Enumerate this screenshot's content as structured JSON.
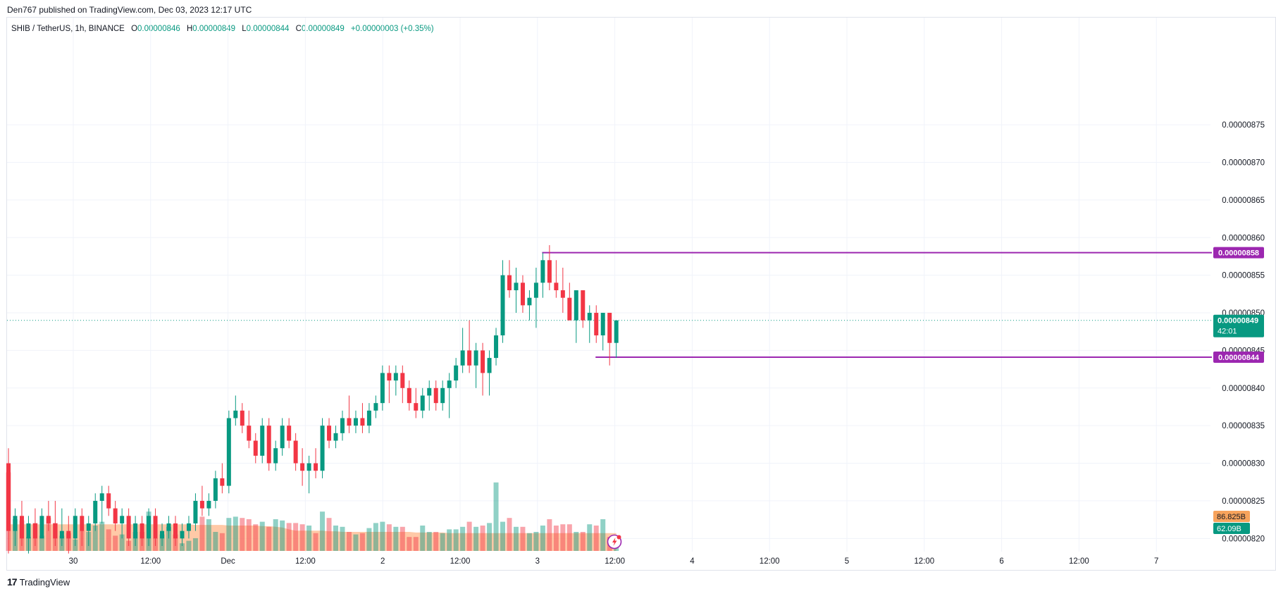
{
  "header": {
    "published": "Den767 published on TradingView.com, Dec 03, 2023 12:17 UTC",
    "symbol": "SHIB / TetherUS, 1h, BINANCE",
    "o_label": "O",
    "o_value": "0.00000846",
    "h_label": "H",
    "h_value": "0.00000849",
    "l_label": "L",
    "l_value": "0.00000844",
    "c_label": "C",
    "c_value": "0.00000849",
    "change": "+0.00000003 (+0.35%)"
  },
  "branding": {
    "logo": "17",
    "name": "TradingView"
  },
  "colors": {
    "up": "#089981",
    "down": "#f23645",
    "level": "#9c27b0",
    "ma": "#ffb78a"
  },
  "chart_data": {
    "type": "candlestick",
    "title": "SHIB / TetherUS, 1h, BINANCE",
    "y_range": [
      8.1825e-06,
      8.8925e-06
    ],
    "y_ticks": [
      "0.00000875",
      "0.00000870",
      "0.00000865",
      "0.00000860",
      "0.00000855",
      "0.00000850",
      "0.00000845",
      "0.00000840",
      "0.00000835",
      "0.00000830",
      "0.00000825",
      "0.00000820"
    ],
    "x_ticks": [
      "30",
      "12:00",
      "Dec",
      "12:00",
      "2",
      "12:00",
      "3",
      "12:00",
      "4",
      "12:00",
      "5",
      "12:00",
      "6",
      "12:00",
      "7"
    ],
    "candles": [
      [
        8.3e-06,
        8.32e-06,
        8.18e-06,
        8.21e-06
      ],
      [
        8.21e-06,
        8.24e-06,
        8.19e-06,
        8.23e-06
      ],
      [
        8.23e-06,
        8.25e-06,
        8.19e-06,
        8.2e-06
      ],
      [
        8.2e-06,
        8.23e-06,
        8.18e-06,
        8.22e-06
      ],
      [
        8.22e-06,
        8.24e-06,
        8.19e-06,
        8.2e-06
      ],
      [
        8.2e-06,
        8.24e-06,
        8.2e-06,
        8.23e-06
      ],
      [
        8.23e-06,
        8.25e-06,
        8.21e-06,
        8.22e-06
      ],
      [
        8.22e-06,
        8.25e-06,
        8.19e-06,
        8.2e-06
      ],
      [
        8.2e-06,
        8.24e-06,
        8.19e-06,
        8.21e-06
      ],
      [
        8.21e-06,
        8.23e-06,
        8.18e-06,
        8.2e-06
      ],
      [
        8.2e-06,
        8.24e-06,
        8.19e-06,
        8.23e-06
      ],
      [
        8.23e-06,
        8.24e-06,
        8.19e-06,
        8.21e-06
      ],
      [
        8.21e-06,
        8.23e-06,
        8.19e-06,
        8.22e-06
      ],
      [
        8.22e-06,
        8.26e-06,
        8.21e-06,
        8.25e-06
      ],
      [
        8.25e-06,
        8.27e-06,
        8.22e-06,
        8.26e-06
      ],
      [
        8.26e-06,
        8.27e-06,
        8.23e-06,
        8.24e-06
      ],
      [
        8.24e-06,
        8.25e-06,
        8.21e-06,
        8.22e-06
      ],
      [
        8.22e-06,
        8.24e-06,
        8.2e-06,
        8.23e-06
      ],
      [
        8.23e-06,
        8.24e-06,
        8.19e-06,
        8.2e-06
      ],
      [
        8.2e-06,
        8.23e-06,
        8.19e-06,
        8.22e-06
      ],
      [
        8.22e-06,
        8.23e-06,
        8.19e-06,
        8.2e-06
      ],
      [
        8.2e-06,
        8.24e-06,
        8.19e-06,
        8.23e-06
      ],
      [
        8.23e-06,
        8.24e-06,
        8.19e-06,
        8.2e-06
      ],
      [
        8.2e-06,
        8.22e-06,
        8.19e-06,
        8.21e-06
      ],
      [
        8.21e-06,
        8.23e-06,
        8.2e-06,
        8.22e-06
      ],
      [
        8.22e-06,
        8.23e-06,
        8.19e-06,
        8.2e-06
      ],
      [
        8.2e-06,
        8.22e-06,
        8.19e-06,
        8.21e-06
      ],
      [
        8.21e-06,
        8.23e-06,
        8.2e-06,
        8.22e-06
      ],
      [
        8.22e-06,
        8.26e-06,
        8.21e-06,
        8.25e-06
      ],
      [
        8.25e-06,
        8.27e-06,
        8.23e-06,
        8.24e-06
      ],
      [
        8.24e-06,
        8.26e-06,
        8.23e-06,
        8.25e-06
      ],
      [
        8.25e-06,
        8.29e-06,
        8.24e-06,
        8.28e-06
      ],
      [
        8.28e-06,
        8.3e-06,
        8.26e-06,
        8.27e-06
      ],
      [
        8.27e-06,
        8.37e-06,
        8.26e-06,
        8.36e-06
      ],
      [
        8.36e-06,
        8.39e-06,
        8.35e-06,
        8.37e-06
      ],
      [
        8.37e-06,
        8.38e-06,
        8.34e-06,
        8.35e-06
      ],
      [
        8.35e-06,
        8.37e-06,
        8.32e-06,
        8.33e-06
      ],
      [
        8.33e-06,
        8.34e-06,
        8.3e-06,
        8.31e-06
      ],
      [
        8.31e-06,
        8.36e-06,
        8.3e-06,
        8.35e-06
      ],
      [
        8.35e-06,
        8.36e-06,
        8.29e-06,
        8.3e-06
      ],
      [
        8.3e-06,
        8.33e-06,
        8.29e-06,
        8.32e-06
      ],
      [
        8.32e-06,
        8.36e-06,
        8.31e-06,
        8.35e-06
      ],
      [
        8.35e-06,
        8.36e-06,
        8.32e-06,
        8.33e-06
      ],
      [
        8.33e-06,
        8.34e-06,
        8.29e-06,
        8.3e-06
      ],
      [
        8.3e-06,
        8.32e-06,
        8.27e-06,
        8.29e-06
      ],
      [
        8.29e-06,
        8.31e-06,
        8.26e-06,
        8.3e-06
      ],
      [
        8.3e-06,
        8.32e-06,
        8.28e-06,
        8.29e-06
      ],
      [
        8.29e-06,
        8.36e-06,
        8.28e-06,
        8.35e-06
      ],
      [
        8.35e-06,
        8.36e-06,
        8.32e-06,
        8.33e-06
      ],
      [
        8.33e-06,
        8.35e-06,
        8.32e-06,
        8.34e-06
      ],
      [
        8.34e-06,
        8.37e-06,
        8.33e-06,
        8.36e-06
      ],
      [
        8.36e-06,
        8.39e-06,
        8.34e-06,
        8.35e-06
      ],
      [
        8.35e-06,
        8.37e-06,
        8.34e-06,
        8.36e-06
      ],
      [
        8.36e-06,
        8.38e-06,
        8.34e-06,
        8.35e-06
      ],
      [
        8.35e-06,
        8.38e-06,
        8.34e-06,
        8.37e-06
      ],
      [
        8.37e-06,
        8.39e-06,
        8.36e-06,
        8.38e-06
      ],
      [
        8.38e-06,
        8.43e-06,
        8.37e-06,
        8.42e-06
      ],
      [
        8.42e-06,
        8.43e-06,
        8.38e-06,
        8.41e-06
      ],
      [
        8.41e-06,
        8.43e-06,
        8.39e-06,
        8.42e-06
      ],
      [
        8.42e-06,
        8.43e-06,
        8.38e-06,
        8.4e-06
      ],
      [
        8.4e-06,
        8.41e-06,
        8.37e-06,
        8.38e-06
      ],
      [
        8.38e-06,
        8.4e-06,
        8.36e-06,
        8.37e-06
      ],
      [
        8.37e-06,
        8.4e-06,
        8.36e-06,
        8.39e-06
      ],
      [
        8.39e-06,
        8.41e-06,
        8.37e-06,
        8.4e-06
      ],
      [
        8.4e-06,
        8.41e-06,
        8.37e-06,
        8.38e-06
      ],
      [
        8.38e-06,
        8.41e-06,
        8.37e-06,
        8.4e-06
      ],
      [
        8.4e-06,
        8.42e-06,
        8.36e-06,
        8.41e-06
      ],
      [
        8.41e-06,
        8.44e-06,
        8.4e-06,
        8.43e-06
      ],
      [
        8.43e-06,
        8.48e-06,
        8.42e-06,
        8.45e-06
      ],
      [
        8.45e-06,
        8.49e-06,
        8.42e-06,
        8.43e-06
      ],
      [
        8.43e-06,
        8.46e-06,
        8.4e-06,
        8.45e-06
      ],
      [
        8.45e-06,
        8.46e-06,
        8.39e-06,
        8.42e-06
      ],
      [
        8.42e-06,
        8.45e-06,
        8.39e-06,
        8.44e-06
      ],
      [
        8.44e-06,
        8.48e-06,
        8.43e-06,
        8.47e-06
      ],
      [
        8.47e-06,
        8.57e-06,
        8.46e-06,
        8.55e-06
      ],
      [
        8.55e-06,
        8.57e-06,
        8.52e-06,
        8.53e-06
      ],
      [
        8.53e-06,
        8.56e-06,
        8.5e-06,
        8.54e-06
      ],
      [
        8.54e-06,
        8.55e-06,
        8.5e-06,
        8.51e-06
      ],
      [
        8.51e-06,
        8.53e-06,
        8.49e-06,
        8.52e-06
      ],
      [
        8.52e-06,
        8.56e-06,
        8.48e-06,
        8.54e-06
      ],
      [
        8.54e-06,
        8.58e-06,
        8.52e-06,
        8.57e-06
      ],
      [
        8.57e-06,
        8.59e-06,
        8.53e-06,
        8.54e-06
      ],
      [
        8.54e-06,
        8.57e-06,
        8.52e-06,
        8.53e-06
      ],
      [
        8.53e-06,
        8.56e-06,
        8.5e-06,
        8.52e-06
      ],
      [
        8.52e-06,
        8.54e-06,
        8.49e-06,
        8.49e-06
      ],
      [
        8.49e-06,
        8.53e-06,
        8.46e-06,
        8.53e-06
      ],
      [
        8.53e-06,
        8.53e-06,
        8.48e-06,
        8.49e-06
      ],
      [
        8.49e-06,
        8.51e-06,
        8.46e-06,
        8.5e-06
      ],
      [
        8.5e-06,
        8.51e-06,
        8.46e-06,
        8.47e-06
      ],
      [
        8.47e-06,
        8.5e-06,
        8.45e-06,
        8.5e-06
      ],
      [
        8.5e-06,
        8.5e-06,
        8.43e-06,
        8.46e-06
      ],
      [
        8.46e-06,
        8.49e-06,
        8.44e-06,
        8.49e-06
      ]
    ],
    "volume": [
      62,
      25,
      24,
      11,
      22,
      12,
      26,
      22,
      12,
      14,
      9,
      16,
      15,
      20,
      23,
      17,
      12,
      13,
      8,
      15,
      15,
      31,
      10,
      13,
      19,
      13,
      6,
      8,
      10,
      27,
      25,
      15,
      14,
      26,
      27,
      26,
      25,
      21,
      23,
      19,
      25,
      24,
      22,
      22,
      21,
      20,
      14,
      31,
      26,
      20,
      19,
      15,
      13,
      14,
      18,
      22,
      23,
      21,
      19,
      19,
      11,
      11,
      20,
      15,
      15,
      14,
      17,
      17,
      19,
      23,
      19,
      20,
      22,
      54,
      23,
      26,
      19,
      19,
      14,
      15,
      20,
      25,
      20,
      21,
      21,
      15,
      15,
      21,
      20,
      25,
      11,
      5
    ],
    "volume_ma": [
      21,
      21,
      21,
      21,
      21,
      21,
      21,
      21,
      21,
      21,
      21,
      21,
      21,
      21,
      21,
      21,
      21,
      21,
      21,
      21,
      21,
      21,
      21,
      21,
      21,
      21,
      21,
      21,
      20.5,
      20.5,
      20.5,
      20.5,
      20.5,
      20,
      20,
      20,
      20,
      20,
      19.5,
      19.5,
      19,
      18.5,
      17,
      16,
      16,
      16,
      16,
      16,
      15.5,
      15.5,
      15,
      15,
      15,
      15,
      15,
      15,
      15,
      15,
      15,
      15,
      15,
      14.5,
      14.5,
      14.5,
      14.5,
      14.5,
      14,
      14,
      14,
      14,
      14,
      14,
      14,
      14,
      14,
      14,
      14,
      14,
      14,
      14,
      14,
      14,
      14,
      14,
      14,
      14,
      14,
      14,
      14,
      14,
      14,
      14
    ],
    "levels": [
      {
        "label": "0.00000858",
        "price": 8.58e-06,
        "start_index": 80
      },
      {
        "label": "0.00000844",
        "price": 8.441e-06,
        "start_index": 88
      }
    ],
    "current_price": {
      "label": "0.00000849",
      "price": 8.49e-06,
      "countdown": "42:01"
    },
    "volume_labels": {
      "ma": "86.825B",
      "last": "62.09B"
    }
  }
}
